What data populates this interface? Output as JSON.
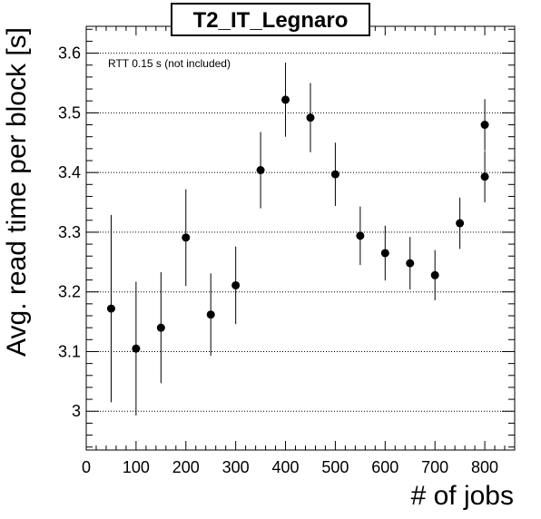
{
  "chart_data": {
    "type": "scatter",
    "title": "T2_IT_Legnaro",
    "xlabel": "# of jobs",
    "ylabel": "Avg. read time per block [s]",
    "annotation": "RTT 0.15 s (not included)",
    "xlim": [
      0,
      860
    ],
    "ylim": [
      2.935,
      3.645
    ],
    "x_ticks": [
      0,
      100,
      200,
      300,
      400,
      500,
      600,
      700,
      800
    ],
    "y_ticks": [
      3,
      3.1,
      3.2,
      3.3,
      3.4,
      3.5,
      3.6
    ],
    "y_tick_labels": [
      "3",
      "3.1",
      "3.2",
      "3.3",
      "3.4",
      "3.5",
      "3.6"
    ],
    "grid": "horizontal-dotted",
    "marker": "filled-circle",
    "color": "#000000",
    "points": [
      {
        "x": 50,
        "y": 3.172,
        "err_low": 0.157,
        "err_high": 0.157
      },
      {
        "x": 100,
        "y": 3.105,
        "err_low": 0.112,
        "err_high": 0.112
      },
      {
        "x": 150,
        "y": 3.14,
        "err_low": 0.093,
        "err_high": 0.093
      },
      {
        "x": 200,
        "y": 3.291,
        "err_low": 0.081,
        "err_high": 0.081
      },
      {
        "x": 250,
        "y": 3.162,
        "err_low": 0.069,
        "err_high": 0.069
      },
      {
        "x": 300,
        "y": 3.211,
        "err_low": 0.065,
        "err_high": 0.065
      },
      {
        "x": 350,
        "y": 3.404,
        "err_low": 0.064,
        "err_high": 0.064
      },
      {
        "x": 400,
        "y": 3.522,
        "err_low": 0.062,
        "err_high": 0.062
      },
      {
        "x": 450,
        "y": 3.492,
        "err_low": 0.058,
        "err_high": 0.058
      },
      {
        "x": 500,
        "y": 3.397,
        "err_low": 0.053,
        "err_high": 0.053
      },
      {
        "x": 550,
        "y": 3.294,
        "err_low": 0.049,
        "err_high": 0.049
      },
      {
        "x": 600,
        "y": 3.265,
        "err_low": 0.046,
        "err_high": 0.046
      },
      {
        "x": 650,
        "y": 3.248,
        "err_low": 0.044,
        "err_high": 0.044
      },
      {
        "x": 700,
        "y": 3.228,
        "err_low": 0.042,
        "err_high": 0.042
      },
      {
        "x": 750,
        "y": 3.315,
        "err_low": 0.043,
        "err_high": 0.043
      },
      {
        "x": 800,
        "y": 3.393,
        "err_low": 0.043,
        "err_high": 0.043
      },
      {
        "x": 800,
        "y": 3.48,
        "err_low": 0.043,
        "err_high": 0.043
      }
    ]
  }
}
